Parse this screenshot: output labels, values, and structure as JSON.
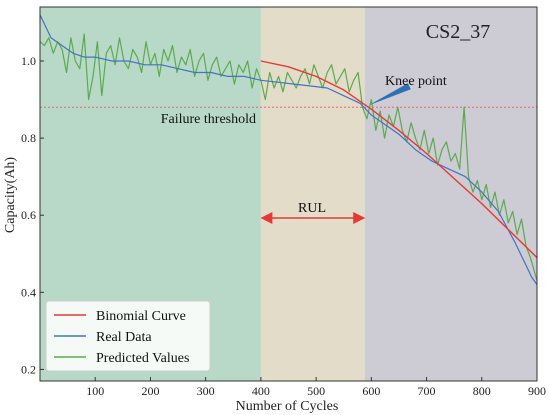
{
  "chart_data": {
    "type": "line",
    "title": "CS2_37",
    "xlabel": "Number of Cycles",
    "ylabel": "Capacity(Ah)",
    "xlim": [
      0,
      900
    ],
    "ylim": [
      0.17,
      1.14
    ],
    "x_ticks": [
      100,
      200,
      300,
      400,
      500,
      600,
      700,
      800,
      900
    ],
    "y_ticks": [
      0.2,
      0.4,
      0.6,
      0.8,
      1.0
    ],
    "y_tick_labels": [
      "0.2",
      "0.4",
      "0.6",
      "0.8",
      "1.0"
    ],
    "regions": [
      {
        "x_start": 0,
        "x_end": 400,
        "color": "#b9d9c8"
      },
      {
        "x_start": 400,
        "x_end": 588,
        "color": "#e3dcc8"
      },
      {
        "x_start": 588,
        "x_end": 900,
        "color": "#cdcbd3"
      }
    ],
    "failure_threshold": {
      "value": 0.88,
      "label": "Failure threshold",
      "color": "#e06666"
    },
    "rul": {
      "x_start": 400,
      "x_end": 588,
      "label": "RUL",
      "color": "#e53935"
    },
    "knee_point": {
      "x": 590,
      "y": 0.88,
      "label": "Knee point"
    },
    "series": [
      {
        "name": "Binomial Curve",
        "color": "#e53935",
        "x": [
          400,
          450,
          500,
          550,
          600,
          650,
          700,
          750,
          800,
          850,
          900
        ],
        "y": [
          1.0,
          0.985,
          0.96,
          0.925,
          0.875,
          0.82,
          0.76,
          0.695,
          0.63,
          0.56,
          0.49
        ]
      },
      {
        "name": "Real Data",
        "color": "#4472c4",
        "x": [
          0,
          10,
          20,
          40,
          60,
          80,
          100,
          130,
          160,
          190,
          220,
          250,
          280,
          310,
          340,
          370,
          400,
          430,
          460,
          490,
          520,
          550,
          580,
          600,
          620,
          650,
          680,
          710,
          740,
          770,
          800,
          830,
          860,
          880,
          890,
          900
        ],
        "y": [
          1.12,
          1.09,
          1.06,
          1.04,
          1.02,
          1.01,
          1.01,
          1.0,
          1.0,
          0.99,
          0.99,
          0.98,
          0.97,
          0.97,
          0.96,
          0.96,
          0.95,
          0.945,
          0.94,
          0.935,
          0.93,
          0.91,
          0.89,
          0.86,
          0.84,
          0.81,
          0.77,
          0.74,
          0.72,
          0.7,
          0.66,
          0.61,
          0.53,
          0.47,
          0.44,
          0.42
        ]
      },
      {
        "name": "Predicted Values",
        "color": "#5aab4f",
        "x": [
          0,
          8,
          16,
          24,
          32,
          40,
          48,
          56,
          64,
          72,
          80,
          88,
          96,
          104,
          112,
          120,
          128,
          136,
          144,
          152,
          160,
          168,
          176,
          184,
          192,
          200,
          208,
          216,
          224,
          232,
          240,
          248,
          256,
          264,
          272,
          280,
          288,
          296,
          304,
          312,
          320,
          328,
          336,
          344,
          352,
          360,
          368,
          376,
          384,
          392,
          400,
          408,
          416,
          424,
          432,
          440,
          448,
          456,
          464,
          472,
          480,
          488,
          496,
          504,
          512,
          520,
          528,
          536,
          544,
          552,
          560,
          568,
          576,
          584,
          592,
          600,
          608,
          616,
          624,
          632,
          640,
          648,
          656,
          664,
          672,
          680,
          688,
          696,
          704,
          712,
          720,
          728,
          736,
          744,
          752,
          760,
          768,
          776,
          784,
          792,
          800,
          808,
          816,
          824,
          832,
          840,
          848,
          856,
          864,
          872,
          880,
          888,
          896,
          900
        ],
        "y": [
          1.05,
          1.04,
          1.06,
          1.02,
          1.05,
          1.03,
          0.97,
          1.06,
          1.0,
          0.98,
          1.07,
          0.9,
          0.96,
          1.05,
          0.91,
          1.02,
          1.04,
          0.99,
          1.06,
          1.0,
          0.98,
          1.03,
          1.01,
          0.97,
          1.05,
          0.99,
          1.02,
          0.96,
          1.03,
          1.0,
          1.04,
          0.97,
          1.01,
          0.99,
          1.03,
          0.96,
          1.0,
          1.02,
          0.95,
          0.99,
          1.01,
          0.96,
          0.98,
          1.0,
          0.94,
          0.99,
          0.97,
          1.0,
          0.93,
          0.98,
          0.95,
          0.9,
          0.97,
          0.93,
          0.96,
          0.92,
          0.97,
          0.95,
          0.93,
          0.96,
          0.98,
          0.94,
          0.99,
          0.96,
          0.93,
          0.97,
          0.99,
          0.94,
          0.96,
          0.98,
          0.92,
          0.95,
          0.97,
          0.88,
          0.85,
          0.9,
          0.82,
          0.87,
          0.8,
          0.86,
          0.83,
          0.88,
          0.82,
          0.79,
          0.84,
          0.8,
          0.77,
          0.82,
          0.76,
          0.8,
          0.73,
          0.77,
          0.79,
          0.74,
          0.76,
          0.72,
          0.88,
          0.7,
          0.66,
          0.69,
          0.64,
          0.68,
          0.62,
          0.66,
          0.6,
          0.64,
          0.58,
          0.61,
          0.55,
          0.59,
          0.52,
          0.49,
          0.45,
          0.43
        ]
      }
    ],
    "legend": {
      "position": "bottom-left",
      "entries": [
        "Binomial Curve",
        "Real Data",
        "Predicted Values"
      ]
    },
    "grid": false
  }
}
